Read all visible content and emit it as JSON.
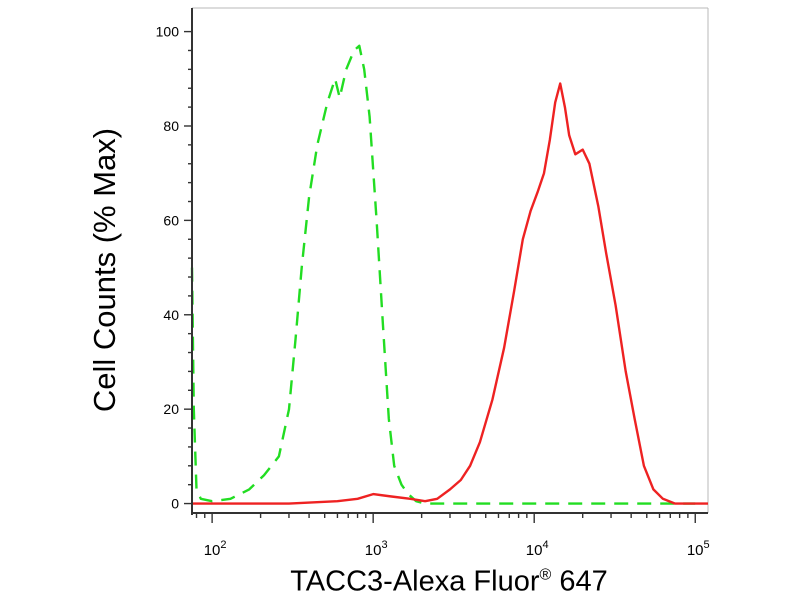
{
  "chart_data": {
    "type": "line",
    "title": "",
    "xlabel": "TACC3-Alexa Fluor",
    "xlabel_superscript": "®",
    "xlabel_suffix": " 647",
    "ylabel": "Cell Counts (% Max)",
    "xscale": "log",
    "xlim": [
      75,
      120000
    ],
    "ylim": [
      -2,
      105
    ],
    "yticks": [
      0,
      20,
      40,
      60,
      80,
      100
    ],
    "ytick_labels": [
      "0",
      "20",
      "40",
      "60",
      "80",
      "100"
    ],
    "xticks": [
      100,
      1000,
      10000,
      100000
    ],
    "xtick_labels": [
      {
        "base": "10",
        "exp": "2"
      },
      {
        "base": "10",
        "exp": "3"
      },
      {
        "base": "10",
        "exp": "4"
      },
      {
        "base": "10",
        "exp": "5"
      }
    ],
    "grid": false,
    "legend": "none",
    "series": [
      {
        "color": "#22dd22",
        "dash": "dashed",
        "points": [
          [
            75,
            50
          ],
          [
            77,
            20
          ],
          [
            80,
            3
          ],
          [
            85,
            1
          ],
          [
            100,
            0.5
          ],
          [
            130,
            1
          ],
          [
            170,
            3
          ],
          [
            210,
            6
          ],
          [
            260,
            10
          ],
          [
            300,
            20
          ],
          [
            330,
            35
          ],
          [
            360,
            50
          ],
          [
            400,
            65
          ],
          [
            450,
            76
          ],
          [
            520,
            85
          ],
          [
            580,
            90
          ],
          [
            620,
            86
          ],
          [
            680,
            92
          ],
          [
            760,
            96
          ],
          [
            820,
            97
          ],
          [
            880,
            92
          ],
          [
            950,
            82
          ],
          [
            1050,
            60
          ],
          [
            1150,
            38
          ],
          [
            1250,
            18
          ],
          [
            1350,
            8
          ],
          [
            1500,
            4
          ],
          [
            1650,
            2
          ],
          [
            1850,
            0.5
          ],
          [
            2100,
            0
          ],
          [
            3000,
            0
          ],
          [
            5000,
            0
          ],
          [
            10000,
            0
          ],
          [
            30000,
            0
          ],
          [
            60000,
            0
          ],
          [
            90000,
            0
          ],
          [
            100000,
            0
          ]
        ]
      },
      {
        "color": "#ee2222",
        "dash": "solid",
        "points": [
          [
            75,
            0
          ],
          [
            300,
            0
          ],
          [
            600,
            0.5
          ],
          [
            800,
            1
          ],
          [
            1000,
            2
          ],
          [
            1300,
            1.5
          ],
          [
            1700,
            1
          ],
          [
            2100,
            0.5
          ],
          [
            2500,
            1
          ],
          [
            3000,
            3
          ],
          [
            3500,
            5
          ],
          [
            4000,
            8
          ],
          [
            4600,
            13
          ],
          [
            5500,
            22
          ],
          [
            6500,
            33
          ],
          [
            7500,
            45
          ],
          [
            8500,
            56
          ],
          [
            9500,
            62
          ],
          [
            10500,
            66
          ],
          [
            11500,
            70
          ],
          [
            12500,
            77
          ],
          [
            13500,
            85
          ],
          [
            14500,
            89
          ],
          [
            15500,
            84
          ],
          [
            16500,
            78
          ],
          [
            18000,
            74
          ],
          [
            20000,
            75
          ],
          [
            22000,
            72
          ],
          [
            25000,
            63
          ],
          [
            28000,
            53
          ],
          [
            32000,
            42
          ],
          [
            37000,
            28
          ],
          [
            42000,
            18
          ],
          [
            48000,
            8
          ],
          [
            55000,
            3
          ],
          [
            63000,
            1
          ],
          [
            75000,
            0
          ],
          [
            120000,
            0
          ]
        ]
      }
    ]
  }
}
